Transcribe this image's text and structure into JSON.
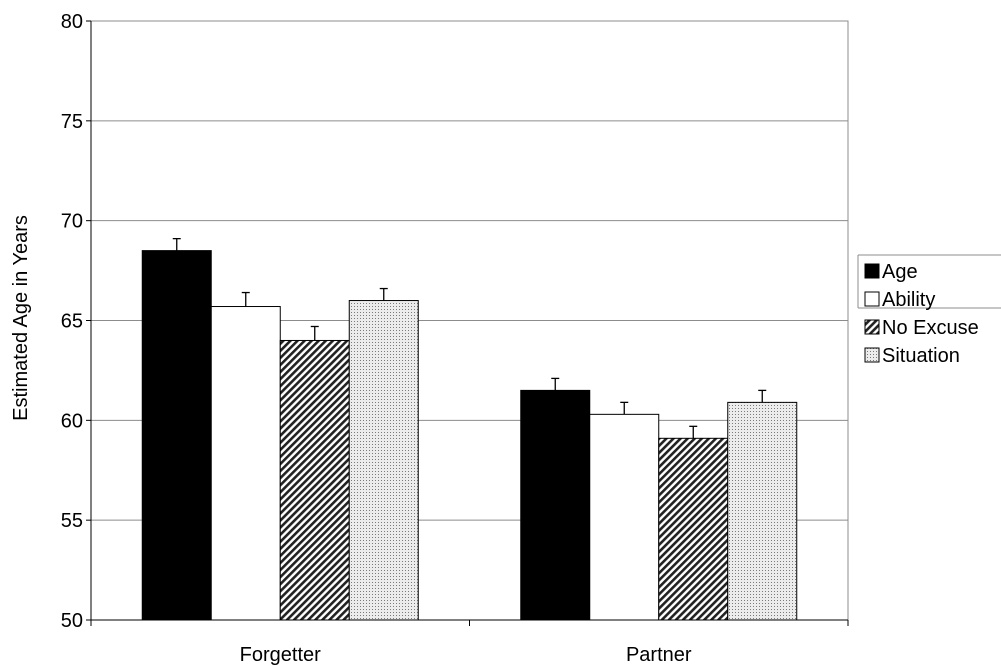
{
  "chart_data": {
    "type": "bar",
    "categories": [
      "Forgetter",
      "Partner"
    ],
    "series": [
      {
        "name": "Age",
        "values": [
          68.5,
          61.5
        ],
        "errors": [
          0.6,
          0.6
        ],
        "pattern": "solid-black"
      },
      {
        "name": "Ability",
        "values": [
          65.7,
          60.3
        ],
        "errors": [
          0.7,
          0.6
        ],
        "pattern": "white"
      },
      {
        "name": "No Excuse",
        "values": [
          64.0,
          59.1
        ],
        "errors": [
          0.7,
          0.6
        ],
        "pattern": "diagonal-hatch"
      },
      {
        "name": "Situation",
        "values": [
          66.0,
          60.9
        ],
        "errors": [
          0.6,
          0.6
        ],
        "pattern": "dotted"
      }
    ],
    "ylabel": "Estimated Age in Years",
    "xlabel": "",
    "ylim": [
      50,
      80
    ],
    "yticks": [
      50,
      55,
      60,
      65,
      70,
      75,
      80
    ],
    "ytick_labels": [
      "50",
      "55",
      "60",
      "65",
      "70",
      "75",
      "80"
    ],
    "grid": true,
    "legend_position": "right"
  }
}
